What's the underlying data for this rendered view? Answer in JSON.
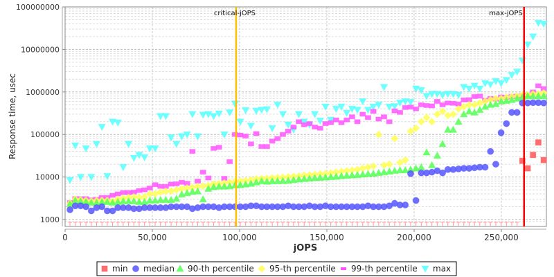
{
  "chart_data": {
    "type": "scatter",
    "title": "",
    "xlabel": "jOPS",
    "ylabel": "Response time, usec",
    "xlim": [
      0,
      275800
    ],
    "ylim": [
      1000,
      100000000
    ],
    "yscale": "log",
    "grid": true,
    "legend_position": "bottom",
    "x_ticks": [
      "0",
      "50,000",
      "100,000",
      "150,000",
      "200,000",
      "250,000"
    ],
    "x_tick_values": [
      0,
      50000,
      100000,
      150000,
      200000,
      250000
    ],
    "y_ticks": [
      "1000",
      "10000",
      "100000",
      "1000000",
      "10000000",
      "100000000"
    ],
    "y_tick_values": [
      1000,
      10000,
      100000,
      1000000,
      10000000,
      100000000
    ],
    "markers": [
      {
        "label": "critical-jOPS",
        "x": 98000,
        "color": "#ffc000"
      },
      {
        "label": "max-jOPS",
        "x": 263000,
        "color": "#ff0000"
      }
    ],
    "x_start": 2800,
    "x_step": 3050,
    "series": [
      {
        "name": "min",
        "color": "#ff5555",
        "shape": "square",
        "values": [
          900,
          900,
          900,
          900,
          900,
          900,
          900,
          900,
          900,
          900,
          900,
          900,
          900,
          900,
          900,
          900,
          900,
          900,
          900,
          900,
          900,
          900,
          900,
          900,
          900,
          900,
          900,
          900,
          900,
          900,
          900,
          900,
          900,
          900,
          900,
          900,
          900,
          900,
          900,
          900,
          900,
          900,
          900,
          900,
          900,
          900,
          900,
          900,
          900,
          900,
          900,
          900,
          900,
          900,
          900,
          900,
          900,
          900,
          900,
          900,
          900,
          900,
          900,
          900,
          900,
          900,
          900,
          900,
          900,
          900,
          900,
          900,
          900,
          900,
          900,
          900,
          900,
          900,
          900,
          900,
          900,
          900,
          900,
          900,
          900,
          24000,
          16000,
          33000,
          65000,
          25000
        ]
      },
      {
        "name": "median",
        "color": "#5555ff",
        "shape": "circle",
        "values": [
          1700,
          2100,
          2100,
          2000,
          1600,
          1900,
          2000,
          1600,
          1600,
          1900,
          1900,
          1900,
          1800,
          1800,
          1900,
          1900,
          1900,
          1900,
          1900,
          2000,
          2000,
          2000,
          2000,
          1800,
          1900,
          2000,
          2000,
          2000,
          1900,
          2000,
          2000,
          2000,
          2000,
          2000,
          2100,
          2100,
          2000,
          2000,
          2000,
          2000,
          2000,
          2100,
          2000,
          2000,
          2000,
          2100,
          2000,
          2000,
          2100,
          2000,
          2000,
          2000,
          2000,
          2000,
          2000,
          2000,
          2100,
          2000,
          2000,
          2000,
          2100,
          2400,
          2200,
          2200,
          12000,
          2800,
          12500,
          12500,
          13000,
          14000,
          12500,
          15000,
          15000,
          15500,
          16000,
          16000,
          16500,
          17000,
          17000,
          40000,
          20000,
          110000,
          180000,
          330000,
          330000,
          550000,
          550000,
          560000,
          560000,
          550000
        ]
      },
      {
        "name": "90-th percentile",
        "color": "#55ff55",
        "shape": "triangle-up",
        "values": [
          2300,
          2800,
          2700,
          2600,
          2500,
          2500,
          2600,
          2600,
          2500,
          2600,
          2700,
          2700,
          2700,
          2600,
          2600,
          2800,
          2800,
          2900,
          2900,
          2900,
          3100,
          3900,
          4200,
          4500,
          4600,
          3000,
          5300,
          5800,
          6000,
          6000,
          6100,
          6400,
          6500,
          6700,
          7000,
          7500,
          8000,
          7800,
          8000,
          8000,
          8100,
          8200,
          8500,
          8800,
          9000,
          9200,
          9500,
          9600,
          9800,
          10000,
          10200,
          10500,
          10800,
          11000,
          11200,
          11500,
          11800,
          12000,
          12500,
          13000,
          13500,
          14000,
          14500,
          14500,
          15000,
          16000,
          17000,
          38000,
          19000,
          32000,
          60000,
          130000,
          130000,
          200000,
          300000,
          350000,
          330000,
          380000,
          450000,
          500000,
          520000,
          600000,
          620000,
          650000,
          700000,
          750000,
          800000,
          800000,
          800000,
          800000
        ]
      },
      {
        "name": "95-th percentile",
        "color": "#ffff55",
        "shape": "diamond",
        "values": [
          2400,
          3000,
          2900,
          2800,
          2700,
          2800,
          2800,
          2800,
          2700,
          3000,
          3200,
          3300,
          3400,
          3300,
          3400,
          4000,
          4000,
          4400,
          4600,
          4700,
          5000,
          5300,
          5500,
          5700,
          6000,
          6100,
          6300,
          6900,
          7000,
          7200,
          7500,
          7800,
          8000,
          8200,
          8500,
          9000,
          9200,
          9300,
          9500,
          9700,
          9800,
          10000,
          10300,
          10500,
          11000,
          11200,
          11500,
          11800,
          12000,
          12500,
          13000,
          13500,
          14000,
          14500,
          15000,
          16000,
          17000,
          18000,
          100000,
          19000,
          20000,
          80000,
          22000,
          25000,
          120000,
          140000,
          200000,
          250000,
          200000,
          300000,
          350000,
          280000,
          300000,
          400000,
          450000,
          500000,
          500000,
          550000,
          600000,
          650000,
          700000,
          700000,
          750000,
          780000,
          800000,
          850000,
          850000,
          900000,
          900000,
          950000
        ]
      },
      {
        "name": "99-th percentile",
        "color": "#ff55ff",
        "shape": "bar",
        "values": [
          2500,
          3100,
          3100,
          3100,
          2900,
          3000,
          3300,
          3300,
          3700,
          4000,
          4300,
          4300,
          4400,
          4800,
          5000,
          5500,
          6600,
          6000,
          6000,
          6800,
          6900,
          7500,
          7100,
          40000,
          8000,
          13000,
          9500,
          47000,
          50000,
          9300,
          23000,
          100000,
          97000,
          92000,
          60000,
          105000,
          52000,
          52000,
          70000,
          80000,
          100000,
          120000,
          150000,
          200000,
          170000,
          180000,
          150000,
          140000,
          180000,
          190000,
          220000,
          190000,
          220000,
          260000,
          200000,
          300000,
          250000,
          350000,
          230000,
          260000,
          200000,
          360000,
          330000,
          430000,
          440000,
          400000,
          500000,
          480000,
          470000,
          600000,
          500000,
          550000,
          540000,
          520000,
          650000,
          660000,
          780000,
          800000,
          640000,
          700000,
          680000,
          760000,
          750000,
          780000,
          800000,
          820000,
          850000,
          1000000,
          1400000,
          1200000
        ]
      },
      {
        "name": "max",
        "color": "#55ffff",
        "shape": "triangle-down",
        "values": [
          8500,
          55000,
          10000,
          47000,
          10000,
          60000,
          150000,
          10500,
          200000,
          190000,
          17000,
          60000,
          28000,
          33000,
          29000,
          47000,
          47000,
          270000,
          270000,
          85000,
          60000,
          90000,
          100000,
          300000,
          90000,
          290000,
          300000,
          270000,
          310000,
          100000,
          330000,
          530000,
          200000,
          370000,
          160000,
          360000,
          380000,
          390000,
          140000,
          500000,
          300000,
          170000,
          130000,
          300000,
          200000,
          170000,
          300000,
          210000,
          450000,
          220000,
          400000,
          450000,
          320000,
          400000,
          380000,
          600000,
          380000,
          450000,
          500000,
          1300000,
          450000,
          460000,
          560000,
          600000,
          580000,
          1200000,
          1100000,
          800000,
          900000,
          900000,
          850000,
          900000,
          900000,
          850000,
          1300000,
          1200000,
          1400000,
          1200000,
          1600000,
          1500000,
          1800000,
          1600000,
          1900000,
          2500000,
          3000000,
          5500000,
          13000000,
          20000000,
          42000000,
          40000000
        ]
      }
    ]
  }
}
